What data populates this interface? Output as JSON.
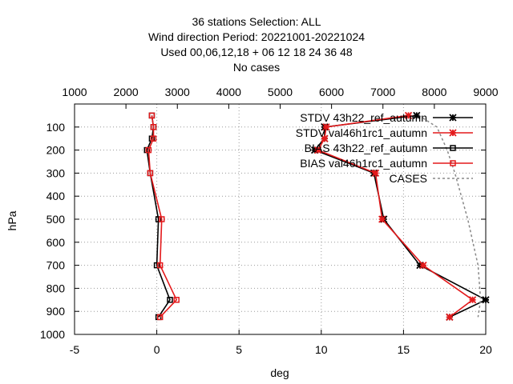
{
  "chart_data": {
    "type": "line",
    "title_lines": [
      "36 stations Selection: ALL",
      "Wind direction  Period: 20221001-20221024",
      "Used  00,06,12,18  + 06 12 18 24 36 48",
      "No cases"
    ],
    "xlabel": "deg",
    "ylabel": "hPa",
    "xlim": [
      -5,
      20
    ],
    "x_ticks": [
      "-5",
      "0",
      "5",
      "10",
      "15",
      "20"
    ],
    "x_tick_values": [
      -5,
      0,
      5,
      10,
      15,
      20
    ],
    "x2lim": [
      1000,
      9000
    ],
    "x2_ticks": [
      "1000",
      "2000",
      "3000",
      "4000",
      "5000",
      "6000",
      "7000",
      "8000",
      "9000"
    ],
    "x2_tick_values": [
      1000,
      2000,
      3000,
      4000,
      5000,
      6000,
      7000,
      8000,
      9000
    ],
    "ylim": [
      1000,
      0
    ],
    "y_ticks": [
      "100",
      "200",
      "300",
      "400",
      "500",
      "600",
      "700",
      "800",
      "900",
      "1000"
    ],
    "y_tick_values": [
      100,
      200,
      300,
      400,
      500,
      600,
      700,
      800,
      900,
      1000
    ],
    "grid": true,
    "legend_position": "top-right",
    "levels": [
      50,
      100,
      150,
      200,
      300,
      500,
      700,
      850,
      925
    ],
    "series": [
      {
        "name": "STDV 43h22_ref_autumn",
        "legend_text": "STDV 43h22_ref_autumn",
        "color": "#000000",
        "marker": "star",
        "axis": "x",
        "values": [
          15.8,
          10.2,
          10.2,
          9.6,
          13.2,
          13.8,
          16.0,
          20.0,
          17.8
        ]
      },
      {
        "name": "STDV val46h1rc1_autumn",
        "legend_text": "STDV val46h1rc1_autumn",
        "color": "#e41a1c",
        "marker": "star",
        "axis": "x",
        "values": [
          15.3,
          10.3,
          10.2,
          9.8,
          13.3,
          13.7,
          16.2,
          19.2,
          17.8
        ]
      },
      {
        "name": "BIAS 43h22_ref_autumn",
        "legend_text": "BIAS 43h22_ref_autumn",
        "color": "#000000",
        "marker": "square",
        "axis": "x",
        "values": [
          -0.3,
          -0.2,
          -0.3,
          -0.6,
          -0.4,
          0.1,
          0.0,
          0.8,
          0.1
        ]
      },
      {
        "name": "BIAS val46h1rc1_autumn",
        "legend_text": "BIAS val46h1rc1_autumn",
        "color": "#e41a1c",
        "marker": "square",
        "axis": "x",
        "values": [
          -0.3,
          -0.2,
          -0.2,
          -0.5,
          -0.4,
          0.3,
          0.2,
          1.2,
          0.2
        ]
      },
      {
        "name": "CASES",
        "legend_text": "CASES",
        "color": "#888888",
        "marker": "none",
        "axis": "x2",
        "dashed": true,
        "values": [
          7700,
          8050,
          8150,
          8250,
          8400,
          8650,
          8850,
          8900,
          8850
        ]
      }
    ]
  }
}
